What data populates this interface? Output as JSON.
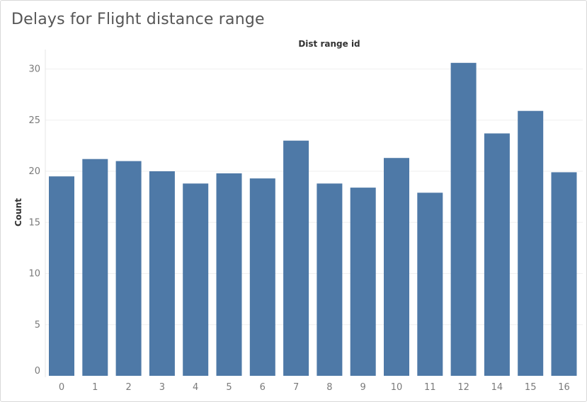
{
  "chart_data": {
    "type": "bar",
    "title": "Delays for Flight distance range",
    "xlabel": "Dist range id",
    "ylabel": "Count",
    "categories": [
      "0",
      "1",
      "2",
      "3",
      "4",
      "5",
      "6",
      "7",
      "8",
      "9",
      "10",
      "11",
      "12",
      "14",
      "15",
      "16"
    ],
    "values": [
      19.5,
      21.2,
      21.0,
      20.0,
      18.8,
      19.8,
      19.3,
      23.0,
      18.8,
      18.4,
      21.3,
      17.9,
      30.6,
      23.7,
      25.9,
      19.9
    ],
    "yticks": [
      "0",
      "5",
      "10",
      "15",
      "20",
      "25",
      "30"
    ],
    "ylim": [
      0,
      33
    ],
    "grid": true,
    "bar_color": "#4e79a7",
    "grid_color": "#efefef"
  }
}
